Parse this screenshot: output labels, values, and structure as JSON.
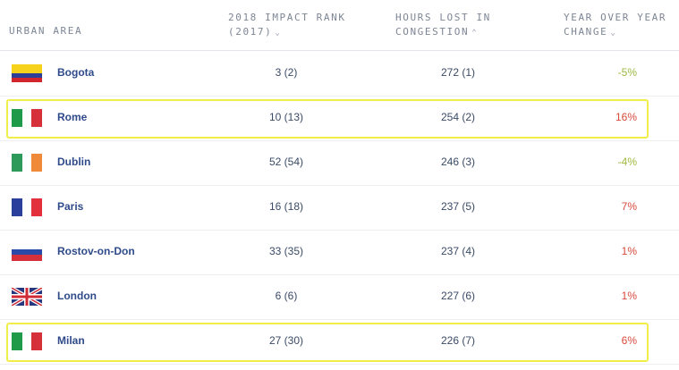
{
  "header": {
    "urban_area": "URBAN AREA",
    "impact_rank_line1": "2018 IMPACT RANK",
    "impact_rank_line2": "(2017)",
    "hours_line1": "HOURS LOST IN",
    "hours_line2": "CONGESTION",
    "yoy_line1": "YEAR OVER YEAR",
    "yoy_line2": "CHANGE"
  },
  "rows": [
    {
      "flag": "colombia-flag",
      "city": "Bogota",
      "rank": "3 (2)",
      "hours": "272 (1)",
      "change": "-5%",
      "highlighted": false
    },
    {
      "flag": "italy-flag",
      "city": "Rome",
      "rank": "10 (13)",
      "hours": "254 (2)",
      "change": "16%",
      "highlighted": true
    },
    {
      "flag": "ireland-flag",
      "city": "Dublin",
      "rank": "52 (54)",
      "hours": "246 (3)",
      "change": "-4%",
      "highlighted": false
    },
    {
      "flag": "france-flag",
      "city": "Paris",
      "rank": "16 (18)",
      "hours": "237 (5)",
      "change": "7%",
      "highlighted": false
    },
    {
      "flag": "russia-flag",
      "city": "Rostov-on-Don",
      "rank": "33 (35)",
      "hours": "237 (4)",
      "change": "1%",
      "highlighted": false
    },
    {
      "flag": "uk-flag",
      "city": "London",
      "rank": "6 (6)",
      "hours": "227 (6)",
      "change": "1%",
      "highlighted": false
    },
    {
      "flag": "italy-flag",
      "city": "Milan",
      "rank": "27 (30)",
      "hours": "226 (7)",
      "change": "6%",
      "highlighted": true
    }
  ],
  "colors": {
    "positive_change": "#d9493c",
    "negative_change": "#9db83f",
    "highlight_border": "#f1ee4a"
  }
}
